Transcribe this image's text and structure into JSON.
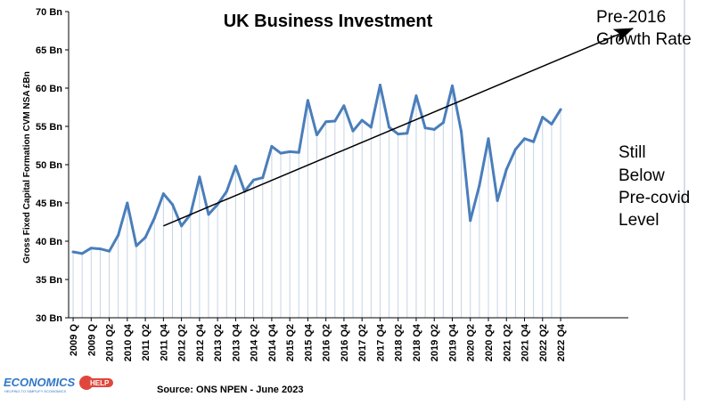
{
  "chart_data": {
    "type": "line",
    "title": "UK Business Investment",
    "ylabel": "Gross Fixed Capital Formation CVM NSA £Bn",
    "xlabel": "",
    "ylim": [
      30,
      70
    ],
    "y_ticks": [
      "30 Bn",
      "35 Bn",
      "40 Bn",
      "45 Bn",
      "50 Bn",
      "55 Bn",
      "60 Bn",
      "65 Bn",
      "70 Bn"
    ],
    "y_tick_values": [
      30,
      35,
      40,
      45,
      50,
      55,
      60,
      65,
      70
    ],
    "x_tick_labels": [
      "2009 Q",
      "2009 Q",
      "2010 Q2",
      "2010 Q4",
      "2011 Q2",
      "2011 Q4",
      "2012 Q2",
      "2012 Q4",
      "2013 Q2",
      "2013 Q4",
      "2014 Q2",
      "2014 Q4",
      "2015 Q2",
      "2015 Q4",
      "2016 Q2",
      "2016 Q4",
      "2017 Q2",
      "2017 Q4",
      "2018 Q2",
      "2018 Q4",
      "2019 Q2",
      "2019 Q4",
      "2020 Q2",
      "2020 Q4",
      "2021 Q2",
      "2021 Q4",
      "2022 Q2",
      "2022 Q4"
    ],
    "x_tick_indices": [
      0,
      2,
      4,
      6,
      8,
      10,
      12,
      14,
      16,
      18,
      20,
      22,
      24,
      26,
      28,
      30,
      32,
      34,
      36,
      38,
      40,
      42,
      44,
      46,
      48,
      50,
      52,
      54
    ],
    "series": [
      {
        "name": "UK Business Investment",
        "color": "#4a7ebb",
        "values": [
          38.6,
          38.4,
          39.1,
          39.0,
          38.7,
          40.8,
          45.0,
          39.4,
          40.5,
          43.0,
          46.2,
          44.8,
          42.0,
          43.5,
          48.4,
          43.5,
          44.8,
          46.5,
          49.8,
          46.5,
          48.0,
          48.3,
          52.4,
          51.5,
          51.7,
          51.6,
          58.4,
          53.9,
          55.6,
          55.7,
          57.7,
          54.4,
          55.8,
          54.9,
          60.4,
          54.9,
          54.0,
          54.1,
          59.0,
          54.8,
          54.6,
          55.5,
          60.3,
          54.3,
          42.7,
          47.3,
          53.4,
          45.3,
          49.4,
          52.0,
          53.4,
          53.0,
          56.2,
          55.3,
          57.2
        ]
      }
    ],
    "trend_arrow": {
      "label_lines": [
        "Pre-2016",
        "Growth Rate"
      ],
      "start": {
        "index": 10,
        "value": 42.0
      },
      "end": {
        "index": 62,
        "value": 67.8
      }
    },
    "annotation_lines": [
      "Still",
      "Below",
      "Pre-covid",
      "Level"
    ],
    "source": "Source: ONS NPEN - June 2023",
    "grid": {
      "vertical": true,
      "horizontal": false
    }
  },
  "logo": {
    "name": "ECONOMICS",
    "badge": "HELP",
    "tagline": "HELPING TO SIMPLIFY ECONOMICS"
  },
  "colors": {
    "line": "#4a7ebb",
    "grid": "#c6d4e6",
    "arrow": "#000000",
    "logo": "#2f77c7"
  }
}
